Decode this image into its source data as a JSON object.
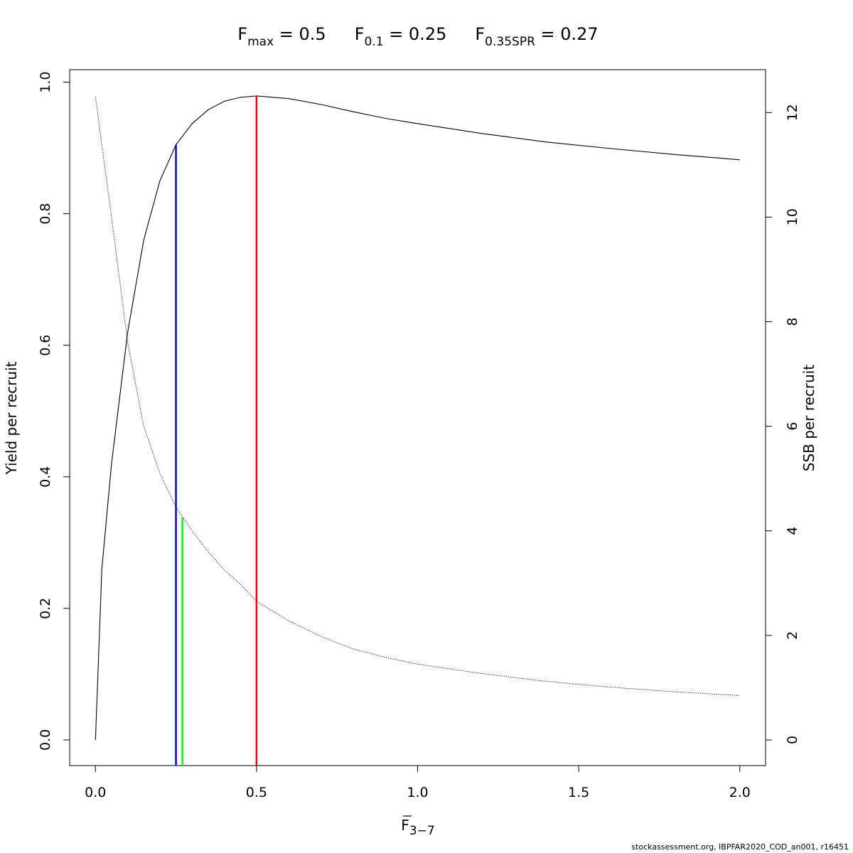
{
  "chart_data": {
    "type": "line",
    "title_parts": [
      {
        "main": "F",
        "sub": "max",
        "rest": " = 0.5"
      },
      {
        "main": "F",
        "sub": "0.1",
        "rest": " = 0.25"
      },
      {
        "main": "F",
        "sub": "0.35SPR",
        "rest": " = 0.27"
      }
    ],
    "xlabel": {
      "main": "F",
      "sub": "3−7",
      "overbar": true
    },
    "ylabel": "Yield per recruit",
    "y2label": "SSB per recruit",
    "xlim": [
      -0.08,
      2.08
    ],
    "ylim": [
      -0.039,
      1.019
    ],
    "y2lim": [
      -0.49,
      12.82
    ],
    "x_ticks": [
      0.0,
      0.5,
      1.0,
      1.5,
      2.0
    ],
    "x_tick_labels": [
      "0.0",
      "0.5",
      "1.0",
      "1.5",
      "2.0"
    ],
    "y_ticks": [
      0.0,
      0.2,
      0.4,
      0.6,
      0.8,
      1.0
    ],
    "y_tick_labels": [
      "0.0",
      "0.2",
      "0.4",
      "0.6",
      "0.8",
      "1.0"
    ],
    "y2_ticks": [
      0,
      2,
      4,
      6,
      8,
      10,
      12
    ],
    "y2_tick_labels": [
      "0",
      "2",
      "4",
      "6",
      "8",
      "10",
      "12"
    ],
    "grid": false,
    "series": [
      {
        "axis": "left",
        "color": "#000000",
        "style": "solid",
        "x": [
          0,
          0.02,
          0.05,
          0.1,
          0.15,
          0.2,
          0.25,
          0.3,
          0.35,
          0.4,
          0.45,
          0.5,
          0.6,
          0.7,
          0.8,
          0.9,
          1.0,
          1.2,
          1.4,
          1.6,
          1.8,
          2.0
        ],
        "y": [
          0.0,
          0.26,
          0.42,
          0.62,
          0.76,
          0.85,
          0.905,
          0.937,
          0.958,
          0.971,
          0.977,
          0.979,
          0.975,
          0.966,
          0.955,
          0.945,
          0.937,
          0.922,
          0.909,
          0.899,
          0.89,
          0.882
        ]
      },
      {
        "axis": "right",
        "color": "#000000",
        "style": "dotted",
        "x": [
          0,
          0.05,
          0.1,
          0.15,
          0.2,
          0.25,
          0.3,
          0.35,
          0.4,
          0.45,
          0.5,
          0.6,
          0.7,
          0.8,
          0.9,
          1.0,
          1.2,
          1.4,
          1.6,
          1.8,
          2.0
        ],
        "y": [
          12.3,
          10.0,
          7.6,
          6.0,
          5.1,
          4.45,
          4.0,
          3.6,
          3.25,
          2.98,
          2.65,
          2.28,
          1.98,
          1.74,
          1.58,
          1.45,
          1.27,
          1.12,
          1.01,
          0.92,
          0.85
        ]
      }
    ],
    "reference_lines": [
      {
        "name": "Fmax",
        "x": 0.5,
        "y_top": 0.979,
        "color": "#ff0000"
      },
      {
        "name": "F0.1",
        "x": 0.25,
        "y_top": 0.905,
        "color": "#0000ff"
      },
      {
        "name": "F0.35SPR",
        "x": 0.27,
        "y_top": 0.338,
        "color": "#00ff00"
      }
    ],
    "footer": "stockassessment.org, IBPFAR2020_COD_an001, r16451"
  }
}
